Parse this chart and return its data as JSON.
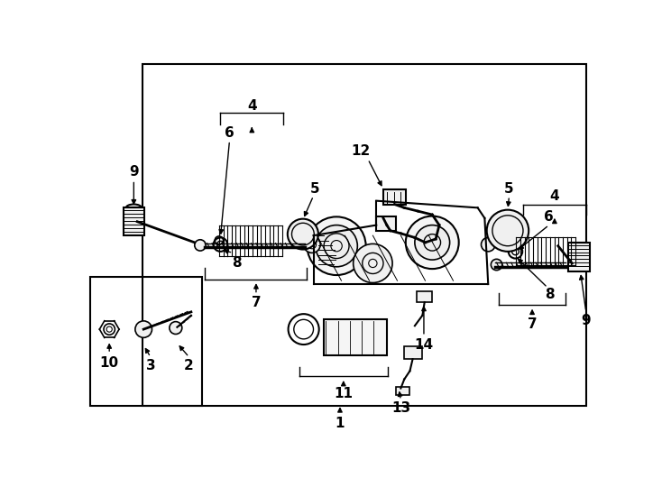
{
  "bg_color": "#ffffff",
  "line_color": "#000000",
  "fig_width": 7.34,
  "fig_height": 5.4,
  "dpi": 100,
  "border_main": [
    85,
    8,
    720,
    500
  ],
  "border_sub": [
    10,
    320,
    170,
    500
  ],
  "parts": {
    "label_fontsize": 11,
    "arrow_lw": 1.0
  }
}
